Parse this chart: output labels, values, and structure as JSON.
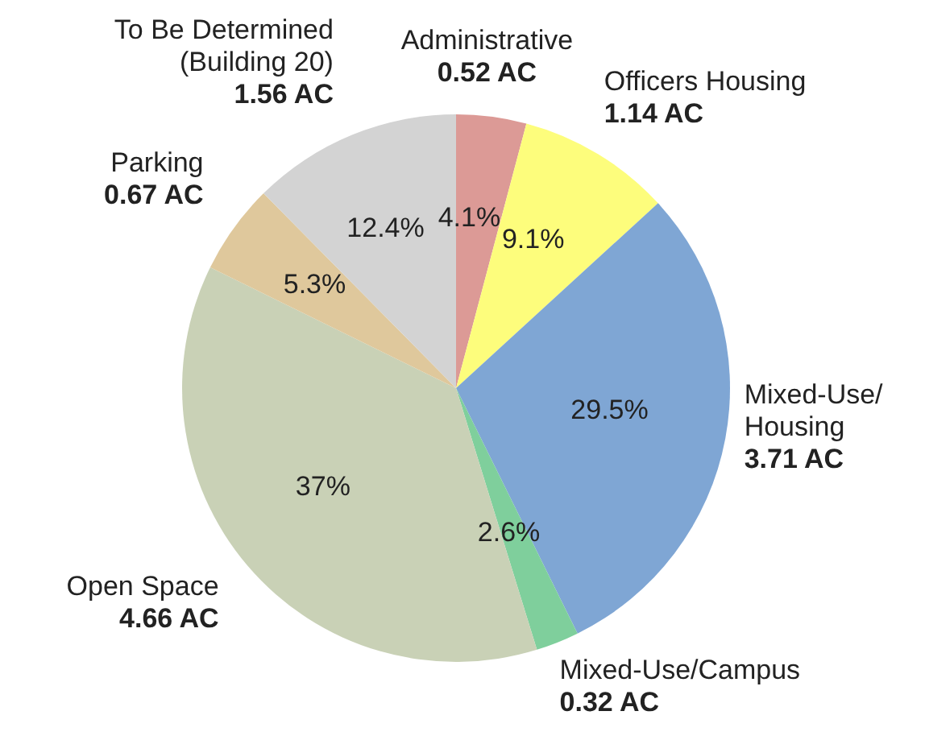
{
  "chart_data": {
    "type": "pie",
    "categories": [
      "Administrative",
      "Officers Housing",
      "Mixed-Use/\nHousing",
      "Mixed-Use/Campus",
      "Open Space",
      "Parking",
      "To Be Determined\n(Building 20)"
    ],
    "values": [
      0.52,
      1.14,
      3.71,
      0.32,
      4.66,
      0.67,
      1.56
    ],
    "value_labels": [
      "0.52 AC",
      "1.14 AC",
      "3.71 AC",
      "0.32 AC",
      "4.66 AC",
      "0.67 AC",
      "1.56 AC"
    ],
    "colors": [
      "#dc9a96",
      "#fdfd7c",
      "#7fa6d4",
      "#7fcf9c",
      "#c9d1b6",
      "#dfc89c",
      "#d3d3d3"
    ],
    "annotations": [
      {
        "text": "4.1%",
        "x": "Administrative"
      },
      {
        "text": "9.1%",
        "x": "Officers Housing"
      },
      {
        "text": "29.5%",
        "x": "Mixed-Use/\nHousing"
      },
      {
        "text": "2.6%",
        "x": "Mixed-Use/Campus"
      },
      {
        "text": "37%",
        "x": "Open Space"
      },
      {
        "text": "5.3%",
        "x": "Parking"
      },
      {
        "text": "12.4%",
        "x": "To Be Determined\n(Building 20)"
      }
    ],
    "legend": false
  }
}
